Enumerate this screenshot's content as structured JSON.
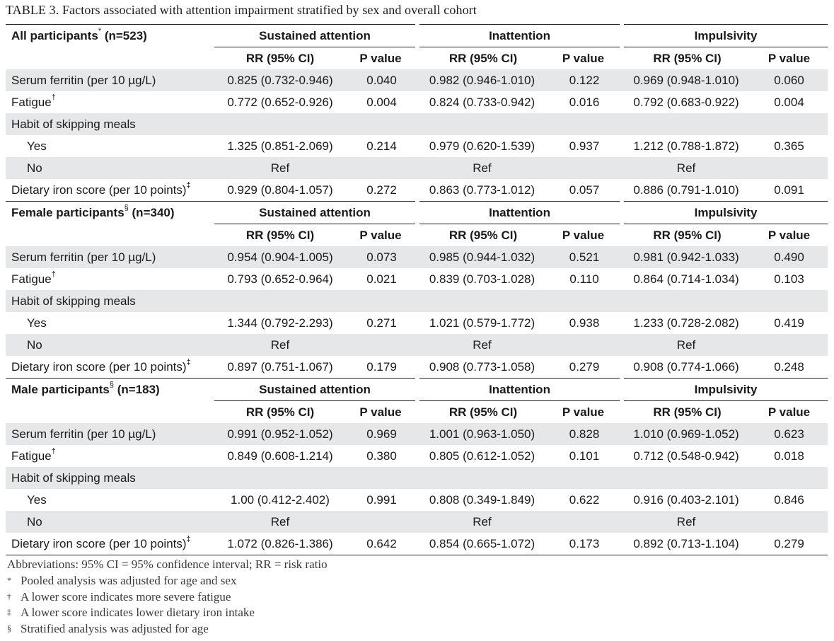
{
  "caption": "TABLE 3.  Factors associated with attention impairment stratified by sex and overall cohort",
  "outcomes": [
    "Sustained attention",
    "Inattention",
    "Impulsivity"
  ],
  "sub_headers": {
    "rr": "RR (95% CI)",
    "p": "P value"
  },
  "groups": [
    {
      "title": "All participants",
      "mark": "*",
      "n": " (n=523)",
      "rows": [
        {
          "label": "Serum ferritin (per 10 µg/L)",
          "mark": "",
          "indent": false,
          "values": [
            "0.825 (0.732-0.946)",
            "0.040",
            "0.982 (0.946-1.010)",
            "0.122",
            "0.969 (0.948-1.010)",
            "0.060"
          ]
        },
        {
          "label": "Fatigue",
          "mark": "†",
          "indent": false,
          "values": [
            "0.772 (0.652-0.926)",
            "0.004",
            "0.824 (0.733-0.942)",
            "0.016",
            "0.792 (0.683-0.922)",
            "0.004"
          ]
        },
        {
          "label": "Habit of skipping meals",
          "mark": "",
          "indent": false,
          "values": [
            "",
            "",
            "",
            "",
            "",
            ""
          ]
        },
        {
          "label": "Yes",
          "mark": "",
          "indent": true,
          "values": [
            "1.325 (0.851-2.069)",
            "0.214",
            "0.979 (0.620-1.539)",
            "0.937",
            "1.212 (0.788-1.872)",
            "0.365"
          ]
        },
        {
          "label": "No",
          "mark": "",
          "indent": true,
          "values": [
            "Ref",
            "",
            "Ref",
            "",
            "Ref",
            ""
          ]
        },
        {
          "label": "Dietary iron score (per 10 points)",
          "mark": "‡",
          "indent": false,
          "values": [
            "0.929 (0.804-1.057)",
            "0.272",
            "0.863 (0.773-1.012)",
            "0.057",
            "0.886 (0.791-1.010)",
            "0.091"
          ]
        }
      ]
    },
    {
      "title": "Female participants",
      "mark": "§",
      "n": " (n=340)",
      "rows": [
        {
          "label": "Serum ferritin (per 10 µg/L)",
          "mark": "",
          "indent": false,
          "values": [
            "0.954 (0.904-1.005)",
            "0.073",
            "0.985 (0.944-1.032)",
            "0.521",
            "0.981 (0.942-1.033)",
            "0.490"
          ]
        },
        {
          "label": "Fatigue",
          "mark": "†",
          "indent": false,
          "values": [
            "0.793 (0.652-0.964)",
            "0.021",
            "0.839 (0.703-1.028)",
            "0.110",
            "0.864 (0.714-1.034)",
            "0.103"
          ]
        },
        {
          "label": "Habit of skipping meals",
          "mark": "",
          "indent": false,
          "values": [
            "",
            "",
            "",
            "",
            "",
            ""
          ]
        },
        {
          "label": "Yes",
          "mark": "",
          "indent": true,
          "values": [
            "1.344 (0.792-2.293)",
            "0.271",
            "1.021 (0.579-1.772)",
            "0.938",
            "1.233 (0.728-2.082)",
            "0.419"
          ]
        },
        {
          "label": "No",
          "mark": "",
          "indent": true,
          "values": [
            "Ref",
            "",
            "Ref",
            "",
            "Ref",
            ""
          ]
        },
        {
          "label": "Dietary iron score (per 10 points)",
          "mark": "‡",
          "indent": false,
          "values": [
            "0.897 (0.751-1.067)",
            "0.179",
            "0.908 (0.773-1.058)",
            "0.279",
            "0.908 (0.774-1.066)",
            "0.248"
          ]
        }
      ]
    },
    {
      "title": "Male participants",
      "mark": "§",
      "n": " (n=183)",
      "rows": [
        {
          "label": "Serum ferritin (per 10 µg/L)",
          "mark": "",
          "indent": false,
          "values": [
            "0.991 (0.952-1.052)",
            "0.969",
            "1.001 (0.963-1.050)",
            "0.828",
            "1.010 (0.969-1.052)",
            "0.623"
          ]
        },
        {
          "label": "Fatigue",
          "mark": "†",
          "indent": false,
          "values": [
            "0.849 (0.608-1.214)",
            "0.380",
            "0.805 (0.612-1.052)",
            "0.101",
            "0.712 (0.548-0.942)",
            "0.018"
          ]
        },
        {
          "label": "Habit of skipping meals",
          "mark": "",
          "indent": false,
          "values": [
            "",
            "",
            "",
            "",
            "",
            ""
          ]
        },
        {
          "label": "Yes",
          "mark": "",
          "indent": true,
          "values": [
            "1.00 (0.412-2.402)",
            "0.991",
            "0.808 (0.349-1.849)",
            "0.622",
            "0.916 (0.403-2.101)",
            "0.846"
          ]
        },
        {
          "label": "No",
          "mark": "",
          "indent": true,
          "values": [
            "Ref",
            "",
            "Ref",
            "",
            "Ref",
            ""
          ]
        },
        {
          "label": "Dietary iron score (per 10 points)",
          "mark": "‡",
          "indent": false,
          "values": [
            "1.072 (0.826-1.386)",
            "0.642",
            "0.854 (0.665-1.072)",
            "0.173",
            "0.892 (0.713-1.104)",
            "0.279"
          ]
        }
      ]
    }
  ],
  "footnotes": [
    {
      "symbol": "",
      "text": "Abbreviations: 95% CI = 95% confidence interval; RR = risk ratio"
    },
    {
      "symbol": "*",
      "text": "Pooled analysis was adjusted for age and sex"
    },
    {
      "symbol": "†",
      "text": "A lower score indicates more severe fatigue"
    },
    {
      "symbol": "‡",
      "text": "A lower score indicates lower dietary iron intake"
    },
    {
      "symbol": "§",
      "text": "Stratified analysis was adjusted for age"
    }
  ]
}
